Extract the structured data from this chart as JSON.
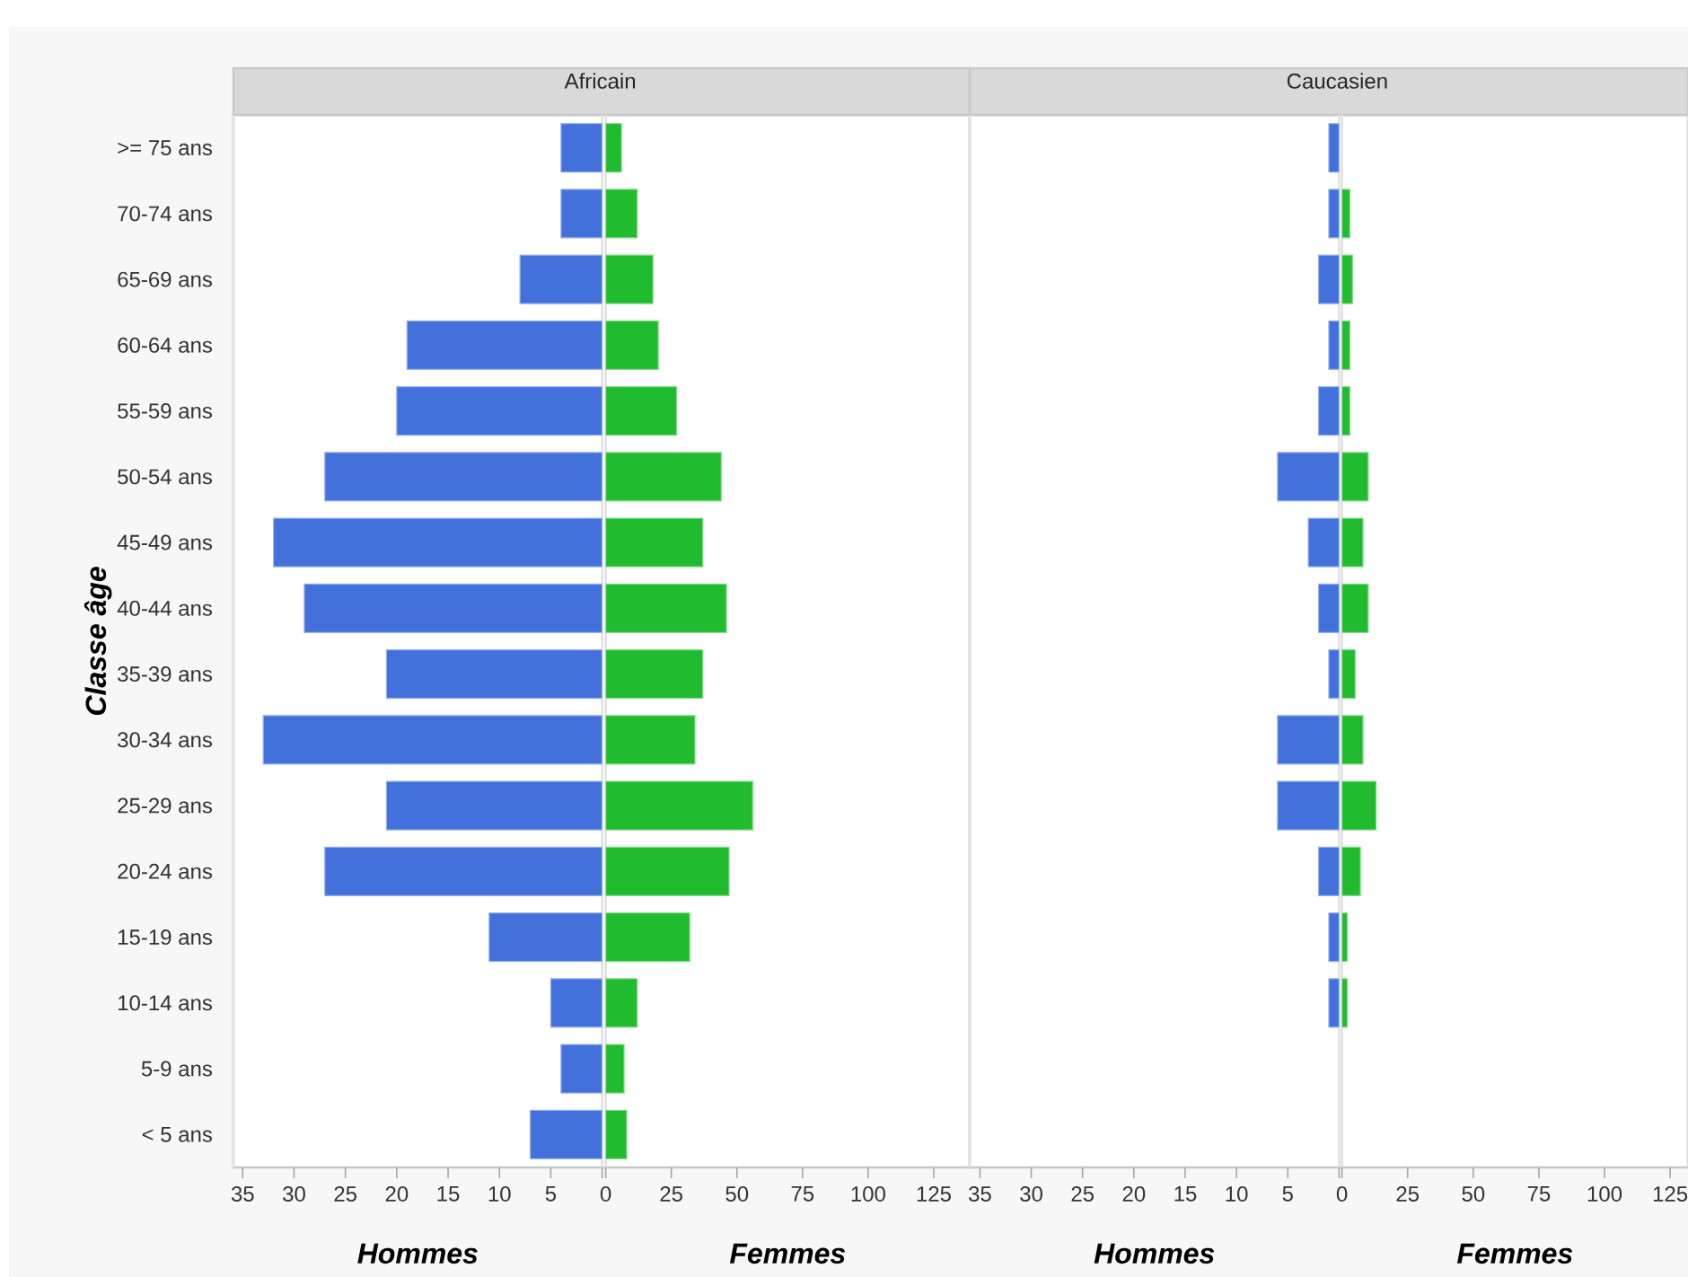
{
  "chart_data": [
    {
      "type": "bar",
      "orientation": "horizontal",
      "title": "Africain",
      "xlabel": "Hommes",
      "ylabel": "Classe âge",
      "categories": [
        ">= 75 ans",
        "70-74 ans",
        "65-69 ans",
        "60-64 ans",
        "55-59 ans",
        "50-54 ans",
        "45-49 ans",
        "40-44 ans",
        "35-39 ans",
        "30-34 ans",
        "25-29 ans",
        "20-24 ans",
        "15-19 ans",
        "10-14 ans",
        "5-9 ans",
        "< 5 ans"
      ],
      "series": [
        {
          "color": "#4371db",
          "values": [
            4,
            4,
            8,
            19,
            20,
            27,
            32,
            29,
            21,
            33,
            21,
            27,
            11,
            5,
            4,
            7
          ]
        }
      ],
      "xlim": [
        35.9,
        0
      ],
      "xticks": [
        35,
        30,
        25,
        20,
        15,
        10,
        5,
        {
          "value": 0,
          "label": null
        }
      ]
    },
    {
      "type": "bar",
      "orientation": "horizontal",
      "xlabel": "Femmes",
      "series": [
        {
          "color": "#21bb2f",
          "values": [
            6,
            12,
            18,
            20,
            27,
            44,
            37,
            46,
            37,
            34,
            56,
            47,
            32,
            12,
            7,
            8
          ]
        }
      ],
      "xlim": [
        0,
        138.7
      ],
      "xticks": [
        0,
        25,
        50,
        75,
        100,
        125
      ],
      "tick_labels": "x"
    },
    {
      "type": "bar",
      "orientation": "horizontal",
      "title": "Caucasien",
      "xlabel": "Hommes",
      "series": [
        {
          "color": "#4371db",
          "values": [
            1,
            1,
            2,
            1,
            2,
            6,
            3,
            2,
            1,
            6,
            6,
            2,
            1,
            1,
            null,
            null
          ]
        }
      ],
      "xlim": [
        36,
        0
      ],
      "xticks": [
        35,
        30,
        25,
        20,
        15,
        10,
        5,
        {
          "value": 0,
          "label": null
        }
      ],
      "tick_labels": "x"
    },
    {
      "type": "bar",
      "orientation": "horizontal",
      "xlabel": "Femmes",
      "series": [
        {
          "color": "#21bb2f",
          "values": [
            null,
            3,
            4,
            3,
            3,
            10,
            8,
            10,
            5,
            8,
            13,
            7,
            2,
            2,
            null,
            null
          ]
        }
      ],
      "xlim": [
        0,
        131.8
      ],
      "xticks": [
        0,
        25,
        50,
        75,
        100,
        125
      ],
      "tick_labels": "x"
    }
  ]
}
